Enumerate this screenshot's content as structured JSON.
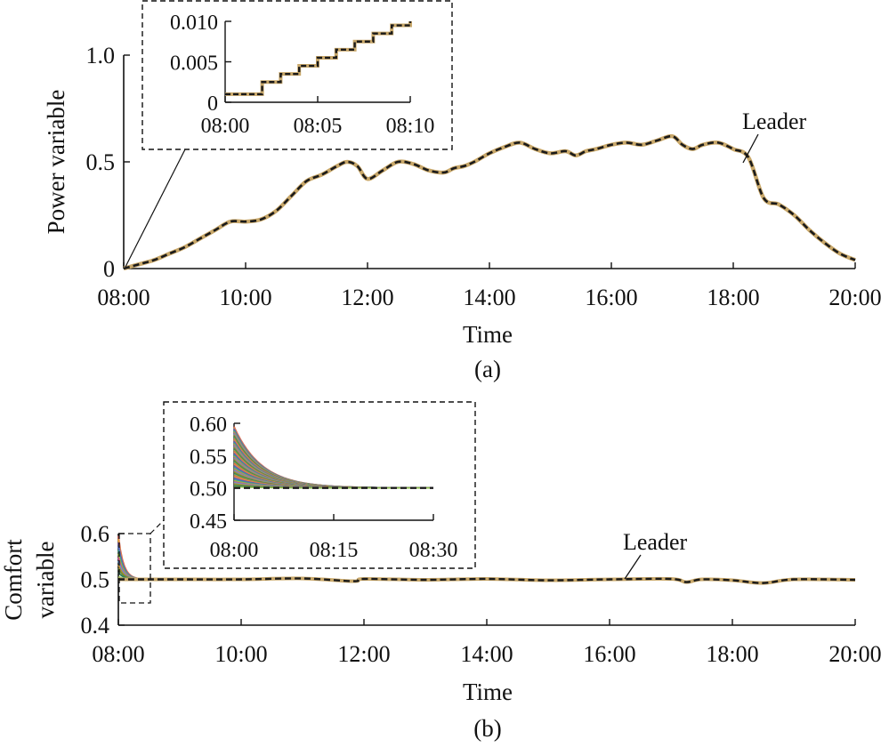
{
  "chart_data": [
    {
      "id": "a",
      "type": "line",
      "caption": "(a)",
      "xlabel": "Time",
      "ylabel": "Power variable",
      "x_ticks": [
        "08:00",
        "10:00",
        "12:00",
        "14:00",
        "16:00",
        "18:00",
        "20:00"
      ],
      "y_ticks": [
        "0",
        "0.5",
        "1.0"
      ],
      "xlim": [
        "08:00",
        "20:00"
      ],
      "ylim": [
        0,
        1.0
      ],
      "annotation": "Leader",
      "series": [
        {
          "role": "leader",
          "color": "#1a1a1a",
          "style": "dashed",
          "x": [
            "08:00",
            "08:15",
            "08:30",
            "08:45",
            "09:00",
            "09:15",
            "09:30",
            "09:45",
            "10:00",
            "10:15",
            "10:30",
            "10:45",
            "11:00",
            "11:15",
            "11:30",
            "11:40",
            "11:50",
            "12:00",
            "12:15",
            "12:30",
            "12:45",
            "13:00",
            "13:15",
            "13:25",
            "13:35",
            "13:45",
            "14:00",
            "14:15",
            "14:30",
            "14:45",
            "15:00",
            "15:15",
            "15:25",
            "15:35",
            "15:45",
            "16:00",
            "16:15",
            "16:30",
            "16:45",
            "17:00",
            "17:10",
            "17:20",
            "17:30",
            "17:45",
            "18:00",
            "18:15",
            "18:30",
            "18:45",
            "19:00",
            "19:15",
            "19:30",
            "19:45",
            "20:00"
          ],
          "y": [
            0.0,
            0.02,
            0.04,
            0.07,
            0.1,
            0.14,
            0.18,
            0.22,
            0.22,
            0.23,
            0.27,
            0.34,
            0.41,
            0.44,
            0.48,
            0.5,
            0.48,
            0.42,
            0.46,
            0.5,
            0.49,
            0.46,
            0.45,
            0.47,
            0.48,
            0.5,
            0.54,
            0.57,
            0.59,
            0.56,
            0.54,
            0.55,
            0.53,
            0.55,
            0.56,
            0.58,
            0.59,
            0.58,
            0.6,
            0.62,
            0.58,
            0.56,
            0.58,
            0.59,
            0.56,
            0.52,
            0.33,
            0.3,
            0.25,
            0.18,
            0.12,
            0.07,
            0.04
          ]
        },
        {
          "role": "followers",
          "color": "#c9a86a",
          "style": "solid",
          "x": [
            "08:00",
            "08:15",
            "08:30",
            "08:45",
            "09:00",
            "09:15",
            "09:30",
            "09:45",
            "10:00",
            "10:15",
            "10:30",
            "10:45",
            "11:00",
            "11:15",
            "11:30",
            "11:40",
            "11:50",
            "12:00",
            "12:15",
            "12:30",
            "12:45",
            "13:00",
            "13:15",
            "13:25",
            "13:35",
            "13:45",
            "14:00",
            "14:15",
            "14:30",
            "14:45",
            "15:00",
            "15:15",
            "15:25",
            "15:35",
            "15:45",
            "16:00",
            "16:15",
            "16:30",
            "16:45",
            "17:00",
            "17:10",
            "17:20",
            "17:30",
            "17:45",
            "18:00",
            "18:15",
            "18:30",
            "18:45",
            "19:00",
            "19:15",
            "19:30",
            "19:45",
            "20:00"
          ],
          "y": [
            0.0,
            0.02,
            0.04,
            0.07,
            0.1,
            0.14,
            0.18,
            0.22,
            0.22,
            0.23,
            0.27,
            0.34,
            0.41,
            0.44,
            0.48,
            0.5,
            0.48,
            0.42,
            0.46,
            0.5,
            0.49,
            0.46,
            0.45,
            0.47,
            0.48,
            0.5,
            0.54,
            0.57,
            0.59,
            0.56,
            0.54,
            0.55,
            0.53,
            0.55,
            0.56,
            0.58,
            0.59,
            0.58,
            0.6,
            0.62,
            0.58,
            0.56,
            0.58,
            0.59,
            0.56,
            0.52,
            0.33,
            0.3,
            0.25,
            0.18,
            0.12,
            0.07,
            0.04
          ]
        }
      ],
      "inset": {
        "x_ticks": [
          "08:00",
          "08:05",
          "08:10"
        ],
        "y_ticks": [
          "0",
          "0.005",
          "0.010"
        ],
        "xlim": [
          "08:00",
          "08:10"
        ],
        "ylim": [
          0,
          0.01
        ],
        "steps": {
          "x": [
            "08:00",
            "08:02",
            "08:03",
            "08:04",
            "08:05",
            "08:06",
            "08:07",
            "08:08",
            "08:09",
            "08:10"
          ],
          "y": [
            0.001,
            0.0025,
            0.0035,
            0.0045,
            0.0055,
            0.0065,
            0.0075,
            0.0085,
            0.0095,
            0.01
          ]
        }
      }
    },
    {
      "id": "b",
      "type": "line",
      "caption": "(b)",
      "xlabel": "Time",
      "ylabel": [
        "Comfort",
        "variable"
      ],
      "x_ticks": [
        "08:00",
        "10:00",
        "12:00",
        "14:00",
        "16:00",
        "18:00",
        "20:00"
      ],
      "y_ticks": [
        "0.4",
        "0.5",
        "0.6"
      ],
      "xlim": [
        "08:00",
        "20:00"
      ],
      "ylim": [
        0.4,
        0.6
      ],
      "annotation": "Leader",
      "series": [
        {
          "role": "leader",
          "color": "#1a1a1a",
          "style": "dashed",
          "x": [
            "08:00",
            "09:00",
            "10:00",
            "11:00",
            "11:50",
            "12:00",
            "13:00",
            "14:00",
            "15:00",
            "16:00",
            "17:00",
            "17:15",
            "17:30",
            "18:00",
            "18:30",
            "19:00",
            "20:00"
          ],
          "y": [
            0.5,
            0.5,
            0.5,
            0.502,
            0.496,
            0.501,
            0.499,
            0.501,
            0.498,
            0.5,
            0.501,
            0.494,
            0.5,
            0.498,
            0.492,
            0.5,
            0.499
          ]
        }
      ],
      "followers": {
        "count": 12,
        "initial": [
          0.595,
          0.588,
          0.58,
          0.572,
          0.564,
          0.556,
          0.548,
          0.54,
          0.532,
          0.524,
          0.515,
          0.506
        ],
        "target": 0.5,
        "palette": [
          "#d9534f",
          "#e8a33c",
          "#7a4fa0",
          "#4b6fbf",
          "#3f9e8c",
          "#9bbf3a",
          "#c94f8a",
          "#5aa0d8",
          "#b8862f",
          "#6b8f3a",
          "#2f7f5f",
          "#8fb84a"
        ]
      },
      "inset": {
        "x_ticks": [
          "08:00",
          "08:15",
          "08:30"
        ],
        "y_ticks": [
          "0.45",
          "0.50",
          "0.55",
          "0.60"
        ],
        "xlim": [
          "08:00",
          "08:30"
        ],
        "ylim": [
          0.45,
          0.6
        ]
      }
    }
  ]
}
